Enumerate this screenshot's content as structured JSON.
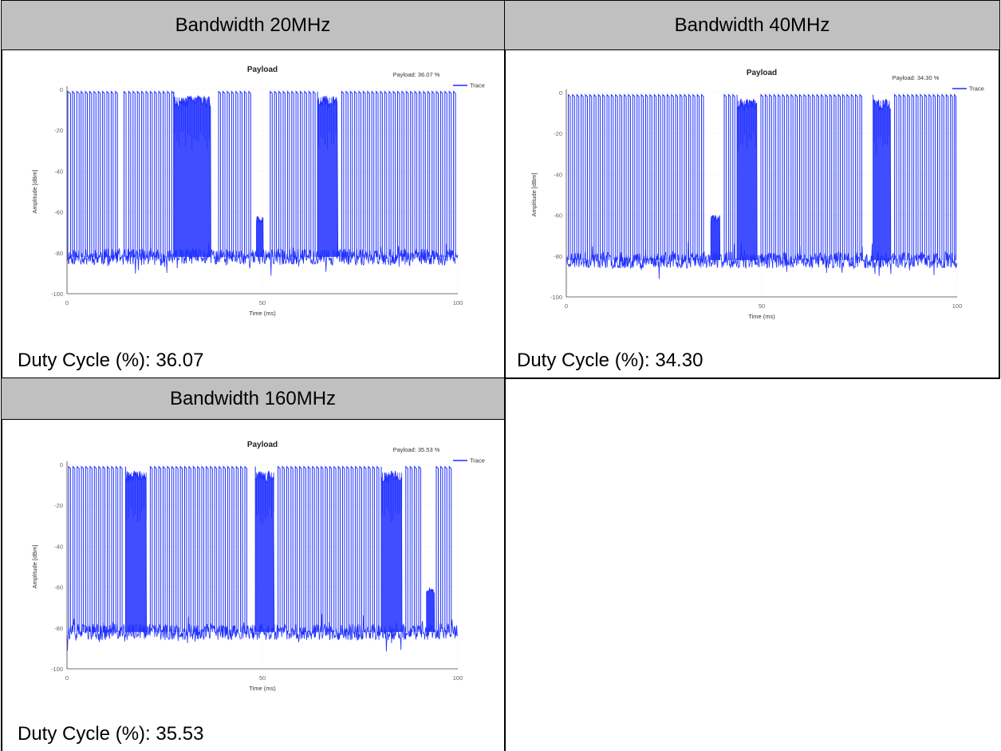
{
  "panels": [
    {
      "header": "Bandwidth 20MHz",
      "duty": "Duty Cycle (%): 36.07",
      "chart": {
        "type": "line",
        "title": "Payload",
        "annotation": "Payload: 36.07 %",
        "legend": "Trace",
        "legend_position": "top-right",
        "xlabel": "Time (ms)",
        "ylabel": "Amplitude [dBm]",
        "xlim": [
          0,
          100
        ],
        "ylim": [
          -100,
          0
        ],
        "xticks": [
          "0",
          "50",
          "100"
        ],
        "yticks": [
          "0",
          "-20",
          "-40",
          "-60",
          "-80",
          "-100"
        ],
        "noise_floor": -82,
        "peak": -1,
        "seed": 11,
        "bursts": [
          [
            0.2,
            0.9
          ],
          [
            1.4,
            1.9
          ],
          [
            2.5,
            3.1
          ],
          [
            3.6,
            4.1
          ],
          [
            4.7,
            5.2
          ],
          [
            5.8,
            6.3
          ],
          [
            6.9,
            7.4
          ],
          [
            8.0,
            8.5
          ],
          [
            9.1,
            9.6
          ],
          [
            10.2,
            10.7
          ],
          [
            11.3,
            11.8
          ],
          [
            12.4,
            12.9
          ],
          [
            14.6,
            15.1
          ],
          [
            15.8,
            16.3
          ],
          [
            16.9,
            17.4
          ],
          [
            18.0,
            18.5
          ],
          [
            19.1,
            19.6
          ],
          [
            20.2,
            20.7
          ],
          [
            21.3,
            21.8
          ],
          [
            22.4,
            22.9
          ],
          [
            23.5,
            24.0
          ],
          [
            24.6,
            25.1
          ],
          [
            25.7,
            26.2
          ],
          [
            26.8,
            27.3
          ],
          [
            27.3,
            36.8
          ],
          [
            38.8,
            39.3
          ],
          [
            39.9,
            40.4
          ],
          [
            41.0,
            41.5
          ],
          [
            42.1,
            42.6
          ],
          [
            43.2,
            43.7
          ],
          [
            44.3,
            44.8
          ],
          [
            45.4,
            45.9
          ],
          [
            46.5,
            47.0
          ],
          [
            52.0,
            52.5
          ],
          [
            53.1,
            53.6
          ],
          [
            54.2,
            54.7
          ],
          [
            55.3,
            55.8
          ],
          [
            56.4,
            56.9
          ],
          [
            57.5,
            58.0
          ],
          [
            58.6,
            59.1
          ],
          [
            59.7,
            60.2
          ],
          [
            60.8,
            61.3
          ],
          [
            61.9,
            62.4
          ],
          [
            63.0,
            63.5
          ],
          [
            64.1,
            69.3
          ],
          [
            70.3,
            70.8
          ],
          [
            71.4,
            71.9
          ],
          [
            72.5,
            73.0
          ],
          [
            73.6,
            74.1
          ],
          [
            74.7,
            75.2
          ],
          [
            75.8,
            76.3
          ],
          [
            76.9,
            77.4
          ],
          [
            78.0,
            78.5
          ],
          [
            79.1,
            79.6
          ],
          [
            80.2,
            80.7
          ],
          [
            81.3,
            81.8
          ],
          [
            82.4,
            82.9
          ],
          [
            83.5,
            84.0
          ],
          [
            84.6,
            85.1
          ],
          [
            85.7,
            86.2
          ],
          [
            86.8,
            87.3
          ],
          [
            87.9,
            88.4
          ],
          [
            89.0,
            89.5
          ],
          [
            90.1,
            90.6
          ],
          [
            91.2,
            91.7
          ],
          [
            92.3,
            92.8
          ],
          [
            93.4,
            93.9
          ],
          [
            94.5,
            95.0
          ],
          [
            95.6,
            96.1
          ],
          [
            96.7,
            97.2
          ],
          [
            97.8,
            98.3
          ],
          [
            98.9,
            99.4
          ]
        ],
        "gap": [
          48.5,
          50.2,
          -64
        ],
        "gap2": [
          50.2,
          51.2,
          -88
        ]
      }
    },
    {
      "header": "Bandwidth 40MHz",
      "duty": "Duty Cycle (%): 34.30",
      "chart": {
        "type": "line",
        "title": "Payload",
        "annotation": "Payload: 34.30 %",
        "legend": "Trace",
        "legend_position": "top-right",
        "xlabel": "Time (ms)",
        "ylabel": "Amplitude [dBm]",
        "xlim": [
          0,
          100
        ],
        "ylim": [
          -100,
          0
        ],
        "xticks": [
          "0",
          "50",
          "100"
        ],
        "yticks": [
          "0",
          "-20",
          "-40",
          "-60",
          "-80",
          "-100"
        ],
        "noise_floor": -82,
        "peak": -1,
        "seed": 23,
        "bursts": [
          [
            0.5,
            1.0
          ],
          [
            1.6,
            2.1
          ],
          [
            2.7,
            3.2
          ],
          [
            3.8,
            4.3
          ],
          [
            4.9,
            5.4
          ],
          [
            6.0,
            6.5
          ],
          [
            7.1,
            7.6
          ],
          [
            8.2,
            8.7
          ],
          [
            9.3,
            9.8
          ],
          [
            10.4,
            10.9
          ],
          [
            11.5,
            12.0
          ],
          [
            12.6,
            13.1
          ],
          [
            13.7,
            14.2
          ],
          [
            14.8,
            15.3
          ],
          [
            15.9,
            16.4
          ],
          [
            17.0,
            17.5
          ],
          [
            18.1,
            18.6
          ],
          [
            19.2,
            19.7
          ],
          [
            20.3,
            20.8
          ],
          [
            21.4,
            21.9
          ],
          [
            22.5,
            23.0
          ],
          [
            23.6,
            24.1
          ],
          [
            24.7,
            25.2
          ],
          [
            25.8,
            26.3
          ],
          [
            26.9,
            27.4
          ],
          [
            28.0,
            28.5
          ],
          [
            29.1,
            29.6
          ],
          [
            30.2,
            30.7
          ],
          [
            31.3,
            31.8
          ],
          [
            32.4,
            32.9
          ],
          [
            33.5,
            34.0
          ],
          [
            34.6,
            35.1
          ],
          [
            40.4,
            40.9
          ],
          [
            41.5,
            42.0
          ],
          [
            42.6,
            43.1
          ],
          [
            43.7,
            48.8
          ],
          [
            49.8,
            50.3
          ],
          [
            50.9,
            51.4
          ],
          [
            52.0,
            52.5
          ],
          [
            53.1,
            53.6
          ],
          [
            54.2,
            54.7
          ],
          [
            55.3,
            55.8
          ],
          [
            56.4,
            56.9
          ],
          [
            57.5,
            58.0
          ],
          [
            58.6,
            59.1
          ],
          [
            59.7,
            60.2
          ],
          [
            60.8,
            61.3
          ],
          [
            61.9,
            62.4
          ],
          [
            63.0,
            63.5
          ],
          [
            64.1,
            64.6
          ],
          [
            65.2,
            65.7
          ],
          [
            66.3,
            66.8
          ],
          [
            67.4,
            67.9
          ],
          [
            68.5,
            69.0
          ],
          [
            69.6,
            70.1
          ],
          [
            70.7,
            71.2
          ],
          [
            71.8,
            72.3
          ],
          [
            72.9,
            73.4
          ],
          [
            74.0,
            74.5
          ],
          [
            75.1,
            75.6
          ],
          [
            78.5,
            83.0
          ],
          [
            84.0,
            84.5
          ],
          [
            85.1,
            85.6
          ],
          [
            86.2,
            86.7
          ],
          [
            87.3,
            87.8
          ],
          [
            88.4,
            88.9
          ],
          [
            89.5,
            90.0
          ],
          [
            90.6,
            91.1
          ],
          [
            91.7,
            92.2
          ],
          [
            92.8,
            93.3
          ],
          [
            93.9,
            94.4
          ],
          [
            95.0,
            95.5
          ],
          [
            96.1,
            96.6
          ],
          [
            97.2,
            97.7
          ],
          [
            98.3,
            98.8
          ],
          [
            99.3,
            99.7
          ]
        ],
        "gap": [
          37.0,
          39.3,
          -62
        ],
        "gap2": [
          39.3,
          40.0,
          -88
        ]
      }
    },
    {
      "header": "Bandwidth 160MHz",
      "duty": "Duty Cycle (%): 35.53",
      "chart": {
        "type": "line",
        "title": "Payload",
        "annotation": "Payload: 35.53 %",
        "legend": "Trace",
        "legend_position": "top-right",
        "xlabel": "Time (ms)",
        "ylabel": "Amplitude [dBm]",
        "xlim": [
          0,
          100
        ],
        "ylim": [
          -100,
          0
        ],
        "xticks": [
          "0",
          "50",
          "100"
        ],
        "yticks": [
          "0",
          "-20",
          "-40",
          "-60",
          "-80",
          "-100"
        ],
        "noise_floor": -82,
        "peak": -1,
        "seed": 37,
        "bursts": [
          [
            0.4,
            0.9
          ],
          [
            1.5,
            2.0
          ],
          [
            2.6,
            3.1
          ],
          [
            3.7,
            4.2
          ],
          [
            4.8,
            5.3
          ],
          [
            5.9,
            6.4
          ],
          [
            7.0,
            7.5
          ],
          [
            8.1,
            8.6
          ],
          [
            9.2,
            9.7
          ],
          [
            10.3,
            10.8
          ],
          [
            11.4,
            11.9
          ],
          [
            12.5,
            13.0
          ],
          [
            13.6,
            14.1
          ],
          [
            15.0,
            20.3
          ],
          [
            21.3,
            21.8
          ],
          [
            22.4,
            22.9
          ],
          [
            23.5,
            24.0
          ],
          [
            24.6,
            25.1
          ],
          [
            25.7,
            26.2
          ],
          [
            26.8,
            27.3
          ],
          [
            27.9,
            28.4
          ],
          [
            29.0,
            29.5
          ],
          [
            30.1,
            30.6
          ],
          [
            31.2,
            31.7
          ],
          [
            32.3,
            32.8
          ],
          [
            33.4,
            33.9
          ],
          [
            34.5,
            35.0
          ],
          [
            35.6,
            36.1
          ],
          [
            36.7,
            37.2
          ],
          [
            37.8,
            38.3
          ],
          [
            38.9,
            39.4
          ],
          [
            40.0,
            40.5
          ],
          [
            41.1,
            41.6
          ],
          [
            42.2,
            42.7
          ],
          [
            43.3,
            43.8
          ],
          [
            44.4,
            44.9
          ],
          [
            45.5,
            46.0
          ],
          [
            48.2,
            53.0
          ],
          [
            54.0,
            54.5
          ],
          [
            55.1,
            55.6
          ],
          [
            56.2,
            56.7
          ],
          [
            57.3,
            57.8
          ],
          [
            58.4,
            58.9
          ],
          [
            59.5,
            60.0
          ],
          [
            60.6,
            61.1
          ],
          [
            61.7,
            62.2
          ],
          [
            62.8,
            63.3
          ],
          [
            63.9,
            64.4
          ],
          [
            65.0,
            65.5
          ],
          [
            66.1,
            66.6
          ],
          [
            67.2,
            67.7
          ],
          [
            68.3,
            68.8
          ],
          [
            69.4,
            69.9
          ],
          [
            70.5,
            71.0
          ],
          [
            71.6,
            72.1
          ],
          [
            72.7,
            73.2
          ],
          [
            73.8,
            74.3
          ],
          [
            74.9,
            75.4
          ],
          [
            76.0,
            76.5
          ],
          [
            77.1,
            77.6
          ],
          [
            78.2,
            78.7
          ],
          [
            79.3,
            79.8
          ],
          [
            80.4,
            85.7
          ],
          [
            86.7,
            87.2
          ],
          [
            87.8,
            88.3
          ],
          [
            88.9,
            89.4
          ],
          [
            90.0,
            90.5
          ],
          [
            94.5,
            95.0
          ],
          [
            95.6,
            96.1
          ],
          [
            96.7,
            97.2
          ],
          [
            97.8,
            98.3
          ]
        ],
        "gap": [
          92.0,
          94.0,
          -62
        ],
        "gap2": [
          91.0,
          92.0,
          -88
        ]
      }
    }
  ]
}
